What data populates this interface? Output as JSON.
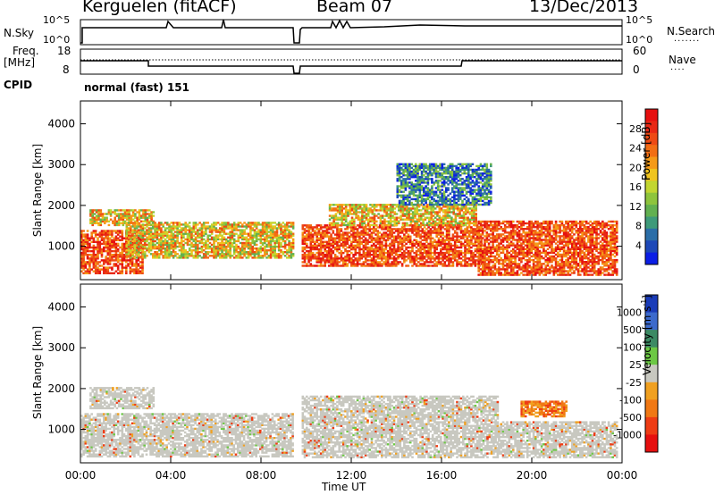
{
  "header": {
    "station": "Kerguelen (fitACF)",
    "beam": "Beam 07",
    "date": "13/Dec/2013"
  },
  "aux_panels": {
    "nsky_label": "N.Sky",
    "nsky_ticks": [
      "10^5",
      "10^0"
    ],
    "nsearch_label": "N.Search",
    "nsearch_ticks": [
      "10^5",
      "10^0"
    ],
    "freq_label_1": "Freq.",
    "freq_label_2": "[MHz]",
    "freq_ticks": [
      "18",
      "8"
    ],
    "nave_label": "Nave",
    "nave_ticks": [
      "60",
      "0"
    ],
    "cpid_label": "CPID",
    "cpid_value": "normal (fast) 151"
  },
  "chart_data": [
    {
      "type": "heatmap",
      "panel": "power",
      "ylabel": "Slant Range [km]",
      "yticks": [
        1000,
        2000,
        3000,
        4000
      ],
      "ylim": [
        180,
        4560
      ],
      "xlim": [
        0,
        24
      ],
      "colorbar": {
        "label": "Power [dB]",
        "ticks": [
          "4",
          "8",
          "12",
          "16",
          "20",
          "24",
          "28"
        ],
        "colors": [
          "#0b1ee6",
          "#1d48b8",
          "#2b6ea8",
          "#3e9a7a",
          "#62b050",
          "#8ec43c",
          "#c2d630",
          "#f0c41e",
          "#f59a18",
          "#f26e14",
          "#ee4a14",
          "#e82814",
          "#e60f0f"
        ]
      },
      "regions": [
        {
          "t0": 0.0,
          "t1": 2.7,
          "r0": 320,
          "r1": 1400,
          "level": "high"
        },
        {
          "t0": 0.4,
          "t1": 3.2,
          "r0": 1500,
          "r1": 1900,
          "level": "mid"
        },
        {
          "t0": 2.0,
          "t1": 9.4,
          "r0": 700,
          "r1": 1600,
          "level": "mid"
        },
        {
          "t0": 9.8,
          "t1": 17.8,
          "r0": 500,
          "r1": 1500,
          "level": "high"
        },
        {
          "t0": 11.0,
          "t1": 17.5,
          "r0": 1500,
          "r1": 2000,
          "level": "mid"
        },
        {
          "t0": 14.0,
          "t1": 18.2,
          "r0": 2000,
          "r1": 3000,
          "level": "low"
        },
        {
          "t0": 17.6,
          "t1": 23.8,
          "r0": 280,
          "r1": 1600,
          "level": "high"
        }
      ]
    },
    {
      "type": "heatmap",
      "panel": "velocity",
      "xlabel": "Time UT",
      "ylabel": "Slant Range [km]",
      "xticks": [
        "00:00",
        "04:00",
        "08:00",
        "12:00",
        "16:00",
        "20:00",
        "00:00"
      ],
      "yticks": [
        1000,
        2000,
        3000,
        4000
      ],
      "ylim": [
        180,
        4560
      ],
      "xlim": [
        0,
        24
      ],
      "colorbar": {
        "label": "Velocity [m s^-1]",
        "label_main": "Velocity [m s",
        "label_sup": "-1",
        "label_end": "]",
        "ticks": [
          "1000",
          "500",
          "100",
          "25",
          "-25",
          "-100",
          "-500",
          "-1000"
        ],
        "colors": [
          "#1a3cb8",
          "#3c6acc",
          "#3c8a64",
          "#6cc844",
          "#c8c8c0",
          "#f0a020",
          "#f07814",
          "#ee3c14",
          "#e60f0f"
        ]
      },
      "regions": [
        {
          "t0": 0.0,
          "t1": 9.4,
          "r0": 320,
          "r1": 1400,
          "level": "near-zero"
        },
        {
          "t0": 0.4,
          "t1": 3.2,
          "r0": 1500,
          "r1": 2000,
          "level": "near-zero"
        },
        {
          "t0": 9.8,
          "t1": 18.5,
          "r0": 300,
          "r1": 1800,
          "level": "near-zero"
        },
        {
          "t0": 18.5,
          "t1": 23.8,
          "r0": 300,
          "r1": 1200,
          "level": "near-zero"
        },
        {
          "t0": 19.5,
          "t1": 21.5,
          "r0": 1300,
          "r1": 1700,
          "level": "negative"
        }
      ]
    }
  ]
}
